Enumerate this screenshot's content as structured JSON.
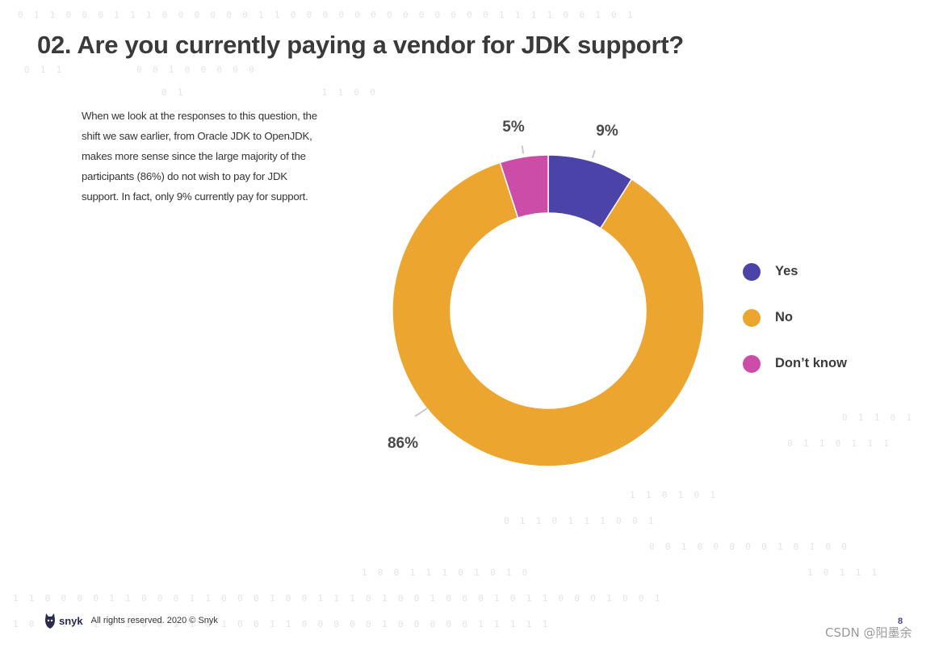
{
  "page": {
    "title": "02. Are you currently paying a vendor for JDK support?",
    "body_text": "When we look at the responses to this question, the shift we saw earlier, from Oracle JDK to OpenJDK, makes more sense since the large majority of the participants (86%) do not wish to pay for JDK support. In fact, only 9% currently pay for support."
  },
  "chart_data": {
    "type": "pie",
    "title": "",
    "categories": [
      "Yes",
      "No",
      "Don’t know"
    ],
    "values": [
      9,
      86,
      5
    ],
    "value_labels": [
      "9%",
      "86%",
      "5%"
    ],
    "colors": [
      "#4b43a8",
      "#eca62f",
      "#cb4da8"
    ],
    "donut": true,
    "legend_position": "right"
  },
  "footer": {
    "logo_text": "snyk",
    "copyright": "All rights reserved. 2020 © Snyk",
    "page_number": "8",
    "watermark": "CSDN @阳墨余"
  },
  "colors": {
    "title": "#3a3a3a",
    "background_binary": "#e4e4e4",
    "logo": "#2a2a50"
  },
  "background_binary_rows": [
    "0  1  1  0  0  0  1  1  1  0  0  0  0  0  0  1  1  0  0  0  0  0  0  0  0  0  0  0  0  0  1  1  1  1  0  0  1  0  1",
    "0  1  1              0  0  1  0  0  0  0  0",
    "0  1                          1  1  0  0",
    "0  1  1  0  1",
    "0  1  1  0  1  1  1",
    "1  1  0  1  0  1",
    "0  1  1  0  1  1  1  0  0  1",
    "0  0  1  0  0  0  0  0  1  0  1  0  0",
    "1  0  0  1  1  1  0  1  0  1  0",
    "1  0  1  1  1",
    "1  1  0  0  0  0  1  1  0  0  0  1  1  0  0  0  1  0  0  1  1  1  0  1  0  0  1  0  0  0  1  0  1  1  0  0  0  1  0  0  1",
    "1  0  1  1  0  1  0  1  0  0  1  1  0  1  0  0  1  1  0  0  0  0  0  1  0  0  0  0  0  1  1  1  1  1"
  ]
}
